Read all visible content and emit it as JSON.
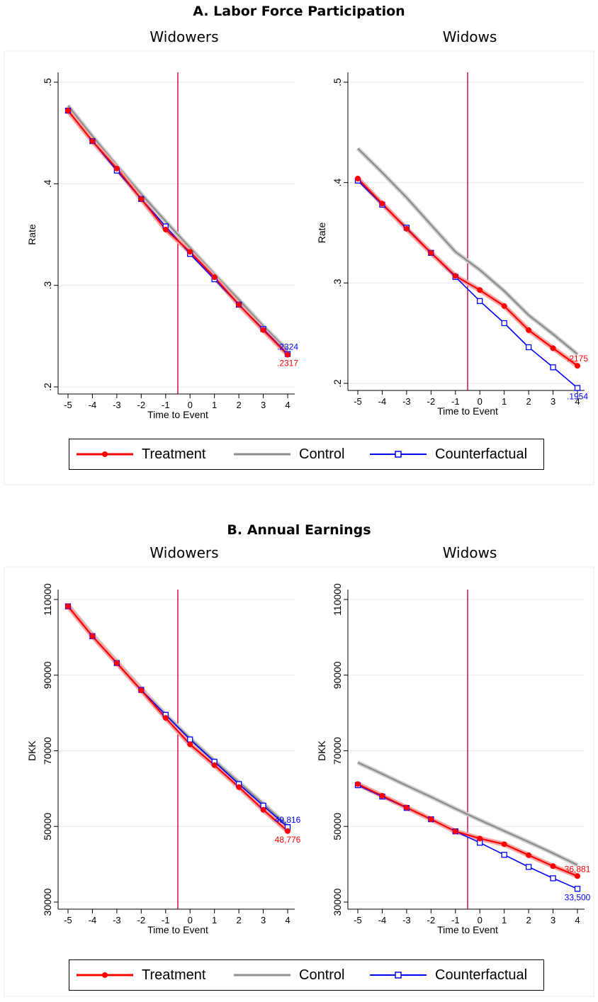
{
  "section_a": {
    "title": "A. Labor Force Participation"
  },
  "section_b": {
    "title": "B. Annual Earnings"
  },
  "legend": {
    "treatment": "Treatment",
    "control": "Control",
    "counterfactual": "Counterfactual"
  },
  "colors": {
    "treatment": "#ff0000",
    "control": "#8c8c8c",
    "counterfactual": "#0000ff",
    "event_line": "#c8003c",
    "ci_band": "#f4a6a6"
  },
  "chart_data": [
    {
      "type": "line",
      "panel": "A",
      "title": "Widowers",
      "xlabel": "Time to Event",
      "ylabel": "Rate",
      "x": [
        -5,
        -4,
        -3,
        -2,
        -1,
        0,
        1,
        2,
        3,
        4
      ],
      "xlim": [
        -5,
        4
      ],
      "ylim": [
        0.2,
        0.5
      ],
      "yticks": [
        0.2,
        0.3,
        0.4,
        0.5
      ],
      "yticklabels": [
        ".2",
        ".3",
        ".4",
        ".5"
      ],
      "event_line_x": -0.5,
      "series": [
        {
          "name": "Treatment",
          "values": [
            0.472,
            0.442,
            0.415,
            0.385,
            0.355,
            0.333,
            0.308,
            0.281,
            0.256,
            0.2317
          ]
        },
        {
          "name": "Control",
          "values": [
            0.477,
            0.447,
            0.418,
            0.39,
            0.363,
            0.337,
            0.311,
            0.286,
            0.26,
            0.236
          ]
        },
        {
          "name": "Counterfactual",
          "values": [
            0.472,
            0.442,
            0.413,
            0.385,
            0.358,
            0.331,
            0.306,
            0.281,
            0.257,
            0.2324
          ]
        }
      ],
      "end_labels": [
        {
          "series": "Counterfactual",
          "text": ".2324"
        },
        {
          "series": "Treatment",
          "text": ".2317"
        }
      ]
    },
    {
      "type": "line",
      "panel": "A",
      "title": "Widows",
      "xlabel": "Time to Event",
      "ylabel": "Rate",
      "x": [
        -5,
        -4,
        -3,
        -2,
        -1,
        0,
        1,
        2,
        3,
        4
      ],
      "xlim": [
        -5,
        4
      ],
      "ylim": [
        0.2,
        0.5
      ],
      "yticks": [
        0.2,
        0.3,
        0.4,
        0.5
      ],
      "yticklabels": [
        ".2",
        ".3",
        ".4",
        ".5"
      ],
      "event_line_x": -0.5,
      "series": [
        {
          "name": "Treatment",
          "values": [
            0.404,
            0.379,
            0.354,
            0.33,
            0.307,
            0.293,
            0.277,
            0.253,
            0.235,
            0.2175
          ]
        },
        {
          "name": "Control",
          "values": [
            0.434,
            0.41,
            0.385,
            0.358,
            0.331,
            0.313,
            0.292,
            0.268,
            0.249,
            0.229
          ]
        },
        {
          "name": "Counterfactual",
          "values": [
            0.402,
            0.378,
            0.355,
            0.33,
            0.306,
            0.282,
            0.26,
            0.236,
            0.216,
            0.1954
          ]
        }
      ],
      "end_labels": [
        {
          "series": "Treatment",
          "text": ".2175"
        },
        {
          "series": "Counterfactual",
          "text": ".1954"
        }
      ]
    },
    {
      "type": "line",
      "panel": "B",
      "title": "Widowers",
      "xlabel": "Time to Event",
      "ylabel": "DKK",
      "x": [
        -5,
        -4,
        -3,
        -2,
        -1,
        0,
        1,
        2,
        3,
        4
      ],
      "xlim": [
        -5,
        4
      ],
      "ylim": [
        30000,
        110000
      ],
      "yticks": [
        30000,
        50000,
        70000,
        90000,
        110000
      ],
      "yticklabels": [
        "30000",
        "50000",
        "70000",
        "90000",
        "110000"
      ],
      "event_line_x": -0.5,
      "series": [
        {
          "name": "Treatment",
          "values": [
            108200,
            100300,
            93200,
            86000,
            78700,
            71700,
            66200,
            60400,
            54400,
            48776
          ]
        },
        {
          "name": "Control",
          "values": [
            108600,
            100800,
            93600,
            86500,
            79600,
            73300,
            67400,
            61700,
            56000,
            50200
          ]
        },
        {
          "name": "Counterfactual",
          "values": [
            108200,
            100300,
            93200,
            86100,
            79500,
            73000,
            67100,
            61200,
            55500,
            49816
          ]
        }
      ],
      "end_labels": [
        {
          "series": "Counterfactual",
          "text": "49,816"
        },
        {
          "series": "Treatment",
          "text": "48,776"
        }
      ]
    },
    {
      "type": "line",
      "panel": "B",
      "title": "Widows",
      "xlabel": "Time to Event",
      "ylabel": "DKK",
      "x": [
        -5,
        -4,
        -3,
        -2,
        -1,
        0,
        1,
        2,
        3,
        4
      ],
      "xlim": [
        -5,
        4
      ],
      "ylim": [
        30000,
        110000
      ],
      "yticks": [
        30000,
        50000,
        70000,
        90000,
        110000
      ],
      "yticklabels": [
        "30000",
        "50000",
        "70000",
        "90000",
        "110000"
      ],
      "event_line_x": -0.5,
      "series": [
        {
          "name": "Treatment",
          "values": [
            61200,
            58100,
            55000,
            51900,
            48700,
            46800,
            45300,
            42400,
            39500,
            36881
          ]
        },
        {
          "name": "Control",
          "values": [
            66900,
            63900,
            60800,
            57800,
            54700,
            51700,
            48800,
            45900,
            42900,
            39800
          ]
        },
        {
          "name": "Counterfactual",
          "values": [
            60900,
            57900,
            54900,
            51900,
            48700,
            45700,
            42500,
            39300,
            36300,
            33500
          ]
        }
      ],
      "end_labels": [
        {
          "series": "Treatment",
          "text": "36,881"
        },
        {
          "series": "Counterfactual",
          "text": "33,500"
        }
      ]
    }
  ]
}
